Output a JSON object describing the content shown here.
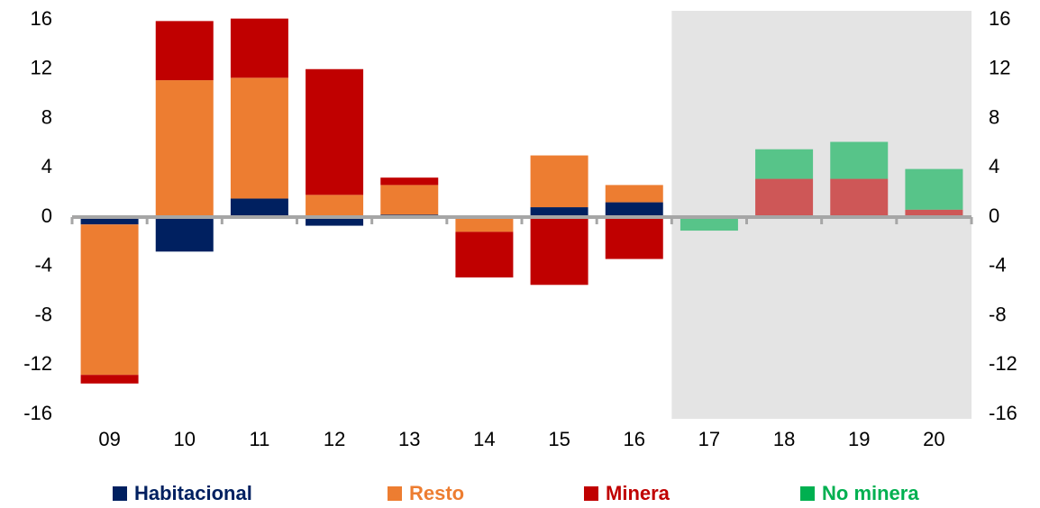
{
  "chart_data": {
    "type": "stacked_bar",
    "categories": [
      "09",
      "10",
      "11",
      "12",
      "13",
      "14",
      "15",
      "16",
      "17",
      "18",
      "19",
      "20"
    ],
    "series": [
      {
        "name": "Habitacional",
        "color": "#002060",
        "values": [
          -0.6,
          -2.8,
          1.5,
          -0.7,
          0.2,
          null,
          0.8,
          1.2,
          null,
          null,
          null,
          null
        ]
      },
      {
        "name": "Resto",
        "color": "#ed7d31",
        "values": [
          -12.2,
          11.1,
          9.8,
          1.8,
          2.4,
          -1.2,
          4.2,
          1.4,
          null,
          null,
          null,
          null
        ]
      },
      {
        "name": "Minera",
        "color": "#c00000",
        "values": [
          -0.7,
          4.8,
          4.8,
          10.2,
          0.6,
          -3.7,
          -5.5,
          -3.4,
          -0.1,
          3.1,
          3.1,
          0.6
        ]
      },
      {
        "name": "No minera",
        "color": "#00b050",
        "values": [
          null,
          null,
          null,
          null,
          null,
          null,
          null,
          null,
          -1.0,
          2.4,
          3.0,
          3.3
        ]
      }
    ],
    "shaded_from": "17",
    "ylim": [
      -16,
      16
    ],
    "yticks": [
      -16,
      -12,
      -8,
      -4,
      0,
      4,
      8,
      12,
      16
    ],
    "y2lim": [
      -16,
      16
    ],
    "y2ticks": [
      -16,
      -12,
      -8,
      -4,
      0,
      4,
      8,
      12,
      16
    ],
    "grid": false,
    "legend": "bottom"
  }
}
